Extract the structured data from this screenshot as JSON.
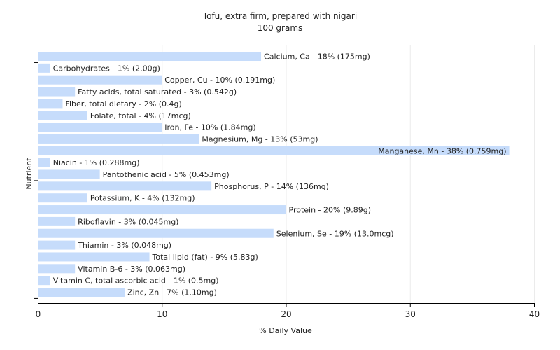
{
  "chart_data": {
    "type": "bar",
    "orientation": "horizontal",
    "title": "Tofu, extra firm, prepared with nigari",
    "subtitle": "100 grams",
    "xlabel": "% Daily Value",
    "ylabel": "Nutrient",
    "xlim": [
      0,
      40
    ],
    "xticks": [
      "0",
      "10",
      "20",
      "30",
      "40"
    ],
    "grid": true,
    "bar_color": "#c6dcfb",
    "categories": [
      "Calcium, Ca",
      "Carbohydrates",
      "Copper, Cu",
      "Fatty acids, total saturated",
      "Fiber, total dietary",
      "Folate, total",
      "Iron, Fe",
      "Magnesium, Mg",
      "Manganese, Mn",
      "Niacin",
      "Pantothenic acid",
      "Phosphorus, P",
      "Potassium, K",
      "Protein",
      "Riboflavin",
      "Selenium, Se",
      "Thiamin",
      "Total lipid (fat)",
      "Vitamin B-6",
      "Vitamin C, total ascorbic acid",
      "Zinc, Zn"
    ],
    "values": [
      18,
      1,
      10,
      3,
      2,
      4,
      10,
      13,
      38,
      1,
      5,
      14,
      4,
      20,
      3,
      19,
      3,
      9,
      3,
      1,
      7
    ],
    "labels": [
      "Calcium, Ca - 18% (175mg)",
      "Carbohydrates - 1% (2.00g)",
      "Copper, Cu - 10% (0.191mg)",
      "Fatty acids, total saturated - 3% (0.542g)",
      "Fiber, total dietary - 2% (0.4g)",
      "Folate, total - 4% (17mcg)",
      "Iron, Fe - 10% (1.84mg)",
      "Magnesium, Mg - 13% (53mg)",
      "Manganese, Mn - 38% (0.759mg)",
      "Niacin - 1% (0.288mg)",
      "Pantothenic acid - 5% (0.453mg)",
      "Phosphorus, P - 14% (136mg)",
      "Potassium, K - 4% (132mg)",
      "Protein - 20% (9.89g)",
      "Riboflavin - 3% (0.045mg)",
      "Selenium, Se - 19% (13.0mcg)",
      "Thiamin - 3% (0.048mg)",
      "Total lipid (fat) - 9% (5.83g)",
      "Vitamin B-6 - 3% (0.063mg)",
      "Vitamin C, total ascorbic acid - 1% (0.5mg)",
      "Zinc, Zn - 7% (1.10mg)"
    ]
  }
}
